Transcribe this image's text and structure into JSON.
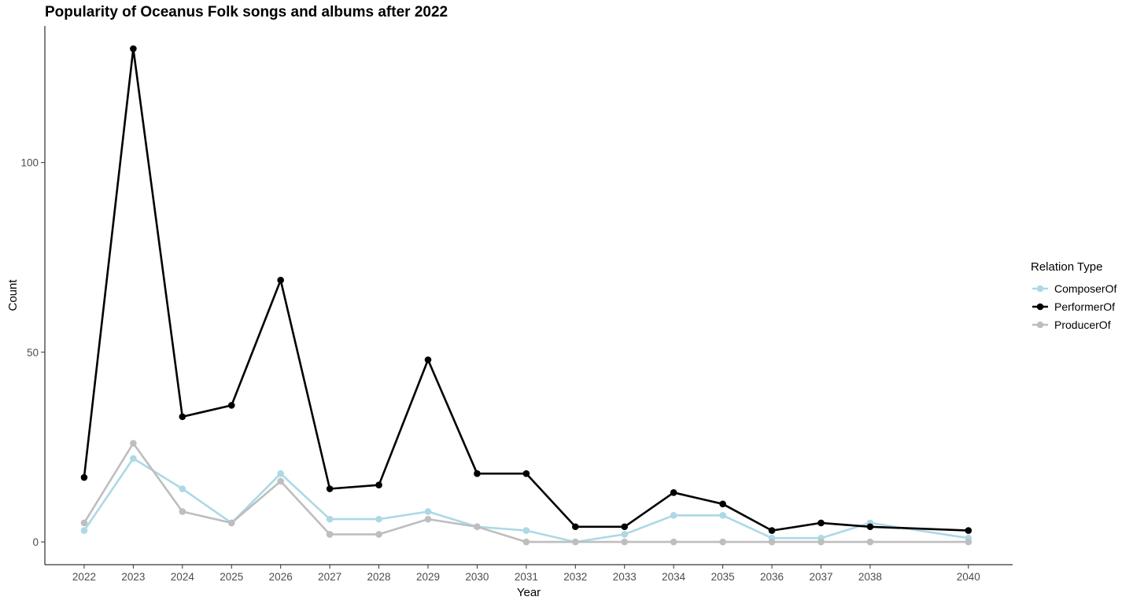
{
  "chart_data": {
    "type": "line",
    "title": "Popularity of Oceanus Folk songs and albums after 2022",
    "xlabel": "Year",
    "ylabel": "Count",
    "x": [
      2022,
      2023,
      2024,
      2025,
      2026,
      2027,
      2028,
      2029,
      2030,
      2031,
      2032,
      2033,
      2034,
      2035,
      2036,
      2037,
      2038,
      2040
    ],
    "x_tick_labels": [
      "2022",
      "2023",
      "2024",
      "2025",
      "2026",
      "2027",
      "2028",
      "2029",
      "2030",
      "2031",
      "2032",
      "2033",
      "2034",
      "2035",
      "2036",
      "2037",
      "2038",
      "2040"
    ],
    "y_ticks": [
      0,
      50,
      100
    ],
    "y_tick_labels": [
      "0",
      "50",
      "100"
    ],
    "xlim": [
      2021.2,
      2040.9
    ],
    "ylim": [
      -6,
      136
    ],
    "grid": false,
    "legend": {
      "title": "Relation Type",
      "position": "right"
    },
    "series": [
      {
        "name": "ComposerOf",
        "color": "#add8e6",
        "values": [
          3,
          22,
          14,
          5,
          18,
          6,
          6,
          8,
          4,
          3,
          0,
          2,
          7,
          7,
          1,
          1,
          5,
          1
        ]
      },
      {
        "name": "PerformerOf",
        "color": "#000000",
        "values": [
          17,
          130,
          33,
          36,
          69,
          14,
          15,
          48,
          18,
          18,
          4,
          4,
          13,
          10,
          3,
          5,
          4,
          3
        ]
      },
      {
        "name": "ProducerOf",
        "color": "#bebebe",
        "values": [
          5,
          26,
          8,
          5,
          16,
          2,
          2,
          6,
          4,
          0,
          0,
          0,
          0,
          0,
          0,
          0,
          0,
          0
        ]
      }
    ]
  }
}
